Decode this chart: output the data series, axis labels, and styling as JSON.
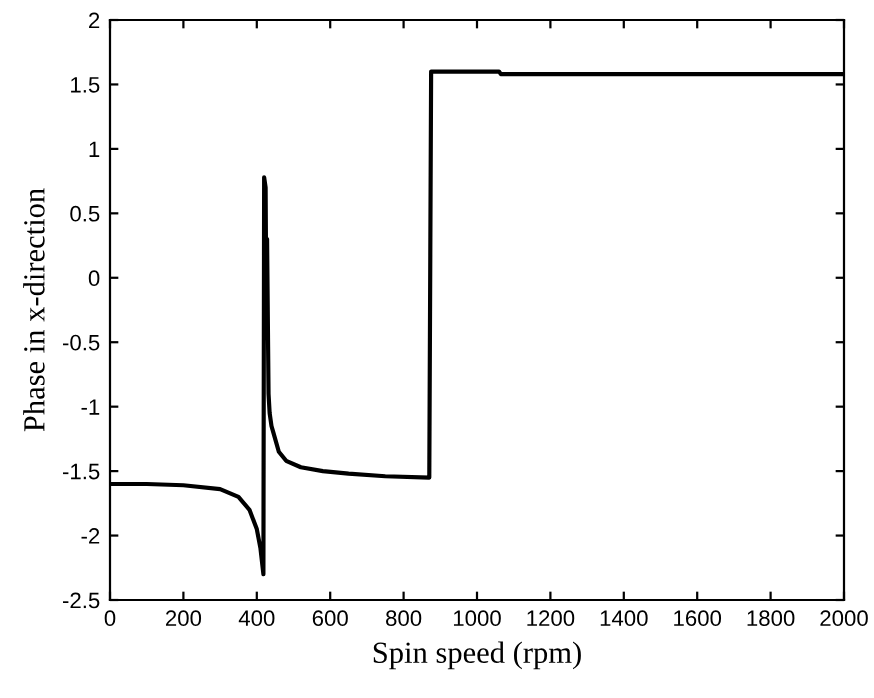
{
  "chart_data": {
    "type": "line",
    "xlabel": "Spin speed (rpm)",
    "ylabel": "Phase in x-direction",
    "series": [
      {
        "color": "#000000",
        "x": [
          0,
          100,
          200,
          300,
          350,
          380,
          400,
          410,
          418,
          420,
          424,
          426,
          428,
          432,
          435,
          440,
          445,
          460,
          480,
          520,
          580,
          650,
          750,
          870,
          875,
          1060,
          1065,
          2000
        ],
        "values": [
          -1.6,
          -1.6,
          -1.61,
          -1.64,
          -1.7,
          -1.8,
          -1.95,
          -2.1,
          -2.3,
          0.78,
          0.7,
          -0.25,
          0.3,
          -0.9,
          -1.05,
          -1.15,
          -1.2,
          -1.35,
          -1.42,
          -1.47,
          -1.5,
          -1.52,
          -1.54,
          -1.55,
          1.6,
          1.6,
          1.58,
          1.58
        ]
      }
    ],
    "xlim": [
      0,
      2000
    ],
    "xticks": [
      0,
      200,
      400,
      600,
      800,
      1000,
      1200,
      1400,
      1600,
      1800,
      2000
    ],
    "ylim": [
      -2.5,
      2
    ],
    "yticks": [
      -2.5,
      -2,
      -1.5,
      -1,
      -0.5,
      0,
      0.5,
      1,
      1.5,
      2
    ],
    "grid": false,
    "legend": false,
    "marker": "none",
    "line_style": "solid"
  }
}
